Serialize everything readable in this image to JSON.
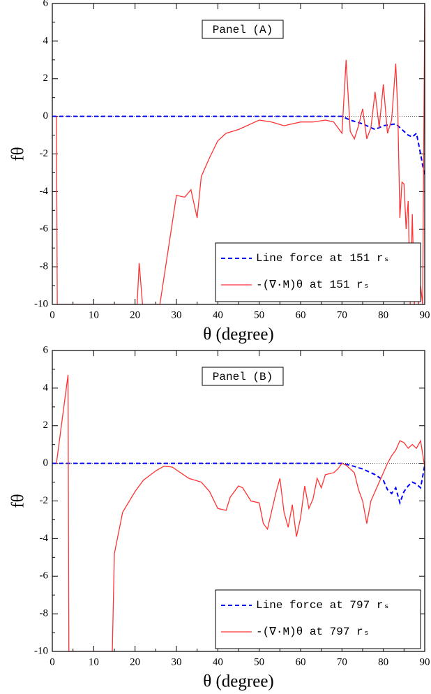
{
  "chart_data": [
    {
      "type": "line",
      "annotation": "Panel (A)",
      "xlabel": "θ (degree)",
      "ylabel": "fθ",
      "xlim": [
        0,
        90
      ],
      "ylim": [
        -10,
        6
      ],
      "xticks": [
        0,
        10,
        20,
        30,
        40,
        50,
        60,
        70,
        80,
        90
      ],
      "yticks": [
        -10,
        -8,
        -6,
        -4,
        -2,
        0,
        2,
        4,
        6
      ],
      "legend": "lower right",
      "series": [
        {
          "name": "Line force at 151 rₛ",
          "color": "#0000ff",
          "dash": true,
          "x": [
            0,
            70,
            72,
            75,
            78,
            80,
            83,
            85,
            86,
            87,
            88,
            89,
            90
          ],
          "values": [
            0,
            0,
            -0.2,
            -0.4,
            -0.7,
            -0.5,
            -0.4,
            -0.8,
            -1.0,
            -1.1,
            -0.9,
            -2,
            -3.2
          ]
        },
        {
          "name": "-(∇·M)θ at 151 rₛ",
          "color": "#ff3333",
          "dash": false,
          "x": [
            1,
            1.2,
            20.5,
            21,
            21.8,
            26,
            30,
            32,
            33.5,
            35,
            36,
            38,
            40,
            42,
            45,
            50,
            53,
            56,
            60,
            63,
            66,
            68,
            70,
            71,
            72,
            73,
            74,
            75,
            76,
            77,
            78,
            79,
            80,
            81,
            82,
            83,
            83.5,
            84,
            84.5,
            85,
            85.5,
            86,
            86.5,
            87,
            87.5,
            88,
            88.5,
            89,
            89.5,
            90
          ],
          "values": [
            0,
            -10,
            -10,
            -7.8,
            -10,
            -10,
            -4.2,
            -4.3,
            -3.9,
            -5.4,
            -3.2,
            -2.2,
            -1.3,
            -0.9,
            -0.7,
            -0.2,
            -0.3,
            -0.5,
            -0.3,
            -0.3,
            -0.2,
            -0.3,
            -0.9,
            3.0,
            -0.8,
            -1.2,
            -0.5,
            0.4,
            -1.2,
            -0.6,
            1.3,
            -0.6,
            1.7,
            -0.9,
            -0.2,
            2.8,
            0.2,
            -5.4,
            -3.5,
            -3.6,
            -6,
            -4.5,
            -10,
            -5.2,
            -10,
            -7,
            -10,
            -9,
            -10,
            6
          ]
        }
      ]
    },
    {
      "type": "line",
      "annotation": "Panel (B)",
      "xlabel": "θ (degree)",
      "ylabel": "fθ",
      "xlim": [
        0,
        90
      ],
      "ylim": [
        -10,
        6
      ],
      "xticks": [
        0,
        10,
        20,
        30,
        40,
        50,
        60,
        70,
        80,
        90
      ],
      "yticks": [
        -10,
        -8,
        -6,
        -4,
        -2,
        0,
        2,
        4,
        6
      ],
      "legend": "lower right",
      "series": [
        {
          "name": "Line force at 797 rₛ",
          "color": "#0000ff",
          "dash": true,
          "x": [
            0,
            70,
            72,
            75,
            78,
            80,
            81,
            82,
            83,
            84,
            85,
            86,
            87,
            88,
            89,
            90
          ],
          "values": [
            0,
            0,
            -0.1,
            -0.3,
            -0.6,
            -0.9,
            -1.4,
            -1.6,
            -1.3,
            -2.1,
            -1.5,
            -1.2,
            -1,
            -1.1,
            -1.3,
            -0.1
          ]
        },
        {
          "name": "-(∇·M)θ at 797 rₛ",
          "color": "#ff3333",
          "dash": false,
          "x": [
            1,
            3.8,
            4,
            14.5,
            15,
            17,
            20,
            22,
            25,
            27,
            29,
            31,
            33,
            36,
            38,
            40,
            42,
            43,
            45,
            46,
            48,
            50,
            51,
            52,
            54,
            55,
            56,
            57,
            58,
            59,
            60,
            61,
            62,
            63,
            64,
            65,
            66,
            68,
            69,
            70,
            71,
            73,
            74,
            75,
            76,
            77,
            78,
            79,
            80,
            81,
            82,
            83,
            84,
            85,
            86,
            87,
            88,
            89,
            90
          ],
          "values": [
            0,
            4.7,
            -10,
            -10,
            -4.8,
            -2.6,
            -1.5,
            -0.9,
            -0.4,
            -0.15,
            -0.2,
            -0.5,
            -0.8,
            -1,
            -1.5,
            -2.4,
            -2.5,
            -1.8,
            -1.2,
            -1.3,
            -2,
            -2.1,
            -3.2,
            -3.5,
            -1.6,
            -0.8,
            -2.6,
            -3.4,
            -2.2,
            -3.9,
            -2.9,
            -1.2,
            -2.4,
            -1.9,
            -0.8,
            -1.3,
            -0.6,
            -0.5,
            -0.3,
            0,
            -0.1,
            -0.5,
            -1.4,
            -2,
            -3.2,
            -2,
            -1.5,
            -1,
            -0.5,
            0,
            0.4,
            0.7,
            1.2,
            1.1,
            0.8,
            1,
            0.8,
            1.2,
            -0.2
          ]
        }
      ]
    }
  ]
}
